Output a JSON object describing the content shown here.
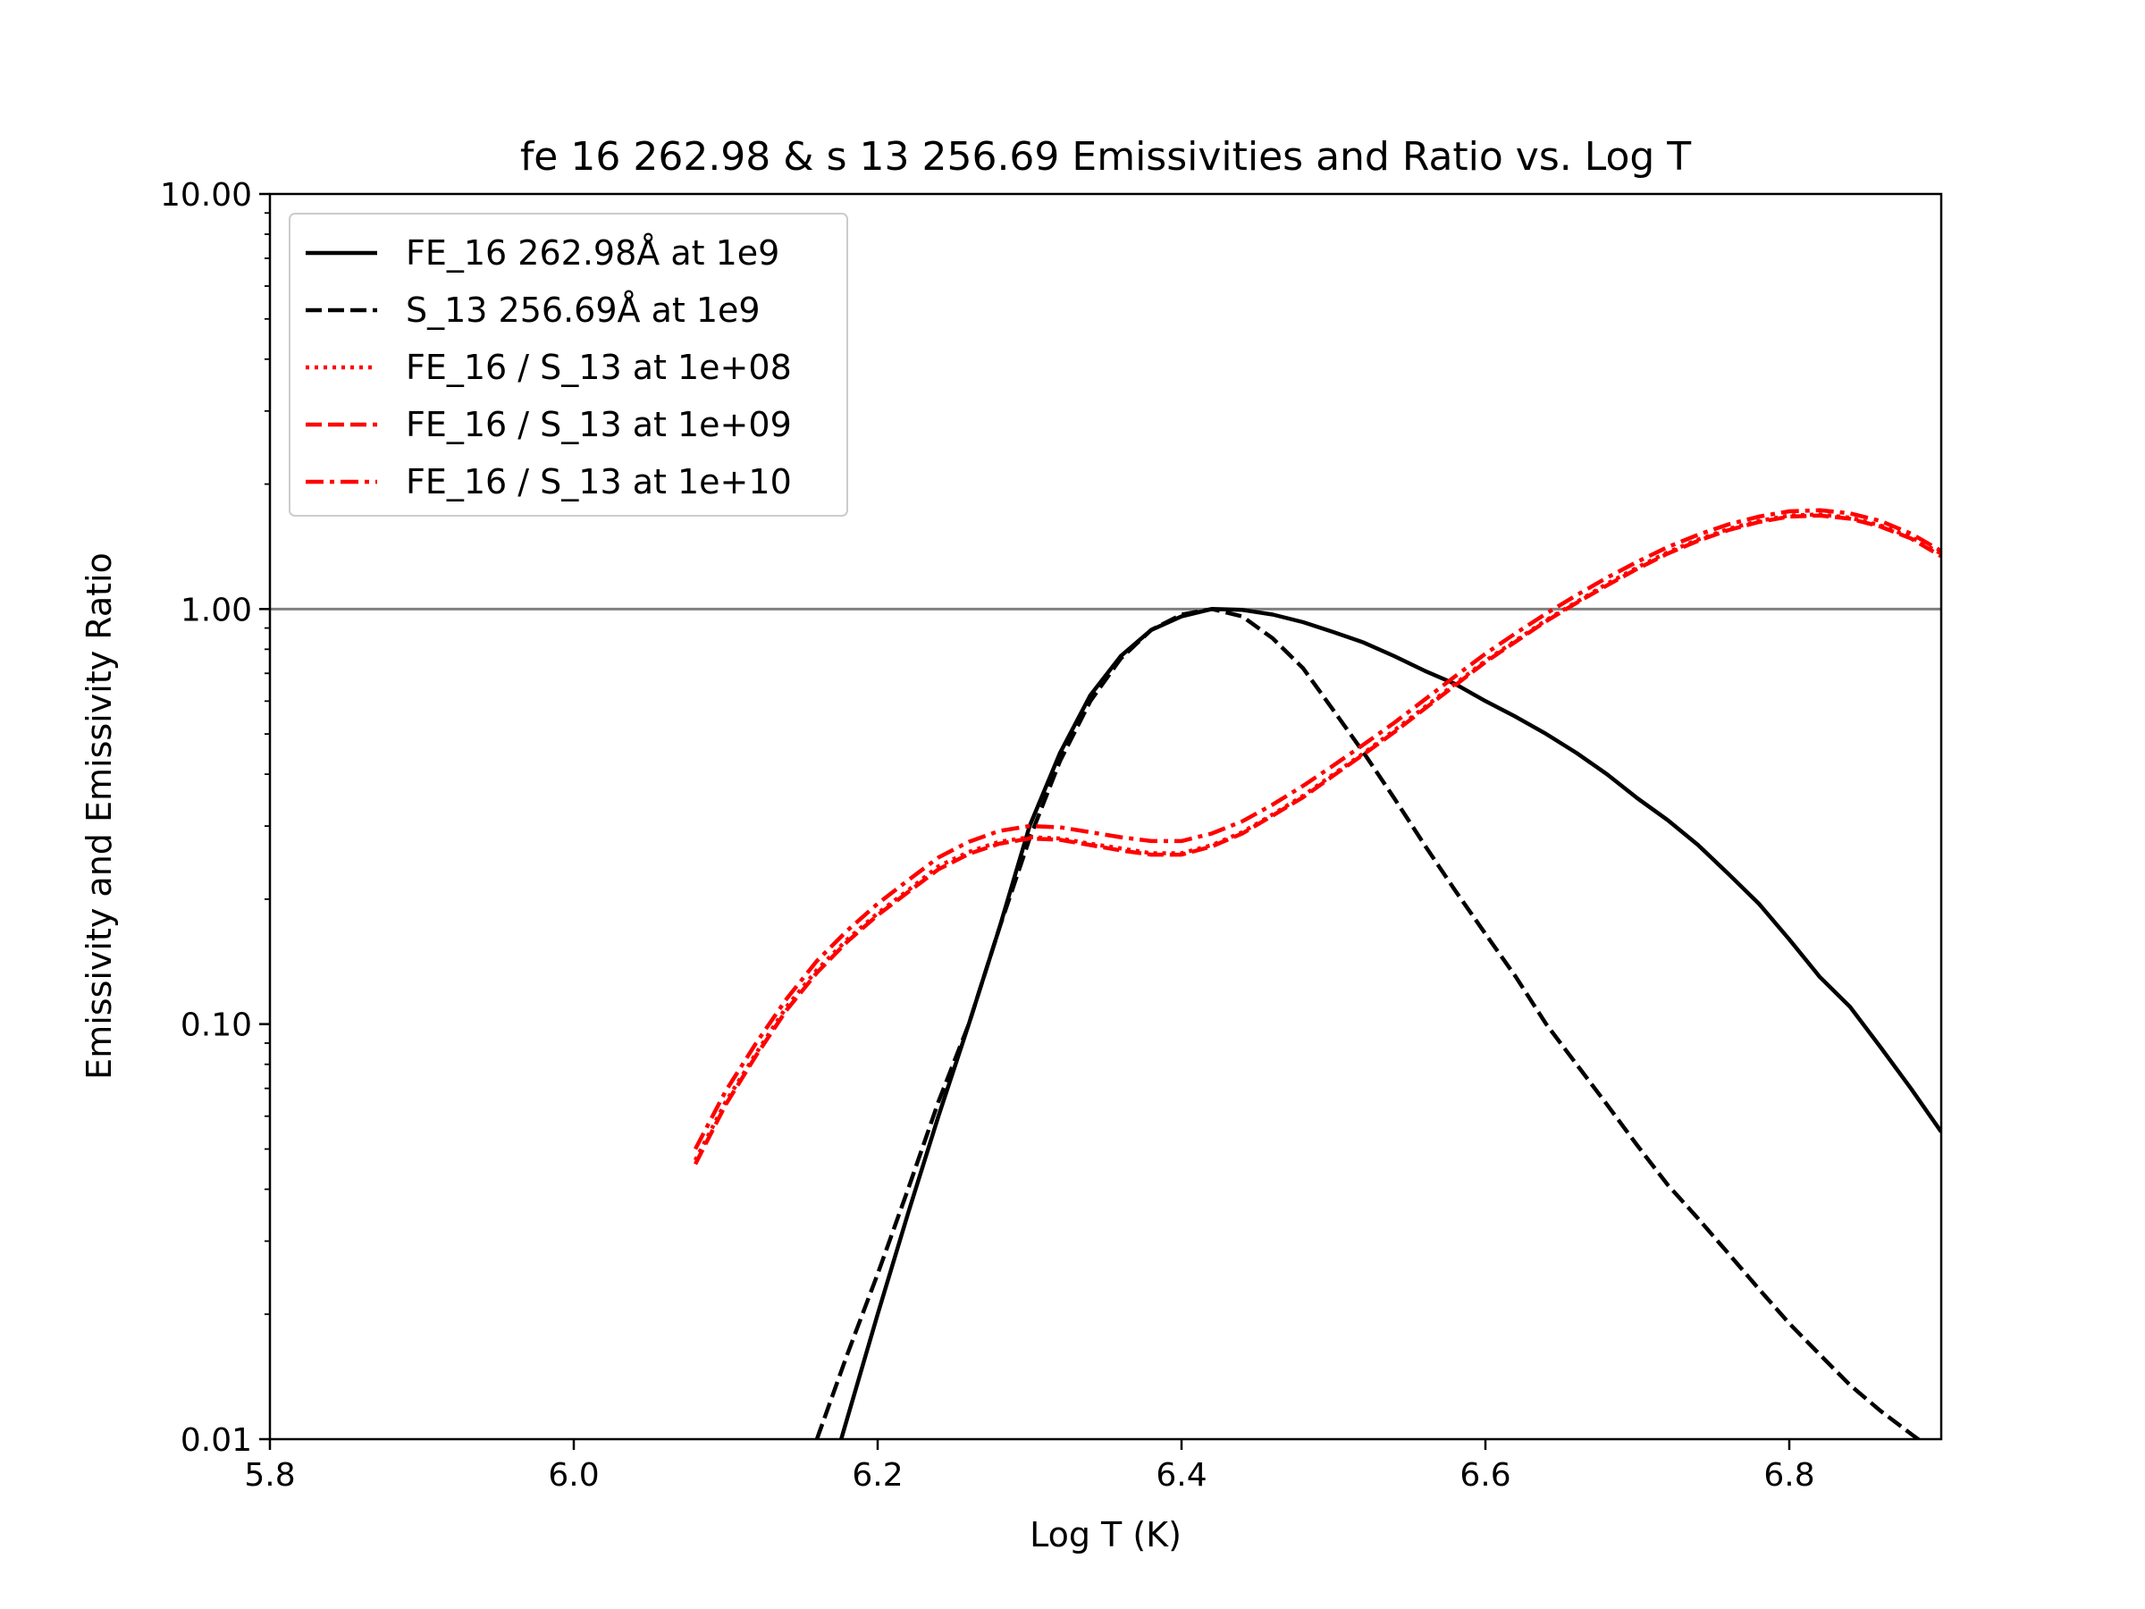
{
  "chart_data": {
    "type": "line",
    "title": "fe 16 262.98 & s 13 256.69 Emissivities and Ratio vs. Log T",
    "xlabel": "Log T (K)",
    "ylabel": "Emissivity and Emissivity Ratio",
    "xlim": [
      5.8,
      6.9
    ],
    "ylim": [
      0.01,
      10
    ],
    "yscale": "log",
    "grid": false,
    "legend_position": "upper-left",
    "xticks": [
      5.8,
      6.0,
      6.2,
      6.4,
      6.6,
      6.8
    ],
    "xtick_labels": [
      "5.8",
      "6.0",
      "6.2",
      "6.4",
      "6.6",
      "6.8"
    ],
    "yticks": [
      0.01,
      0.1,
      1,
      10
    ],
    "ytick_labels": [
      "0.01",
      "0.10",
      "1.00",
      "10.00"
    ],
    "reference_line": {
      "y": 1.0,
      "color": "#808080"
    },
    "series": [
      {
        "name": "FE_16 262.98Å at 1e9",
        "color": "#000000",
        "style": "solid",
        "x": [
          6.176,
          6.2,
          6.22,
          6.24,
          6.26,
          6.28,
          6.3,
          6.32,
          6.34,
          6.36,
          6.38,
          6.4,
          6.42,
          6.44,
          6.46,
          6.48,
          6.5,
          6.52,
          6.54,
          6.56,
          6.58,
          6.6,
          6.62,
          6.64,
          6.66,
          6.68,
          6.7,
          6.72,
          6.74,
          6.76,
          6.78,
          6.8,
          6.82,
          6.84,
          6.86,
          6.88,
          6.9
        ],
        "y": [
          0.01,
          0.02,
          0.035,
          0.06,
          0.1,
          0.17,
          0.3,
          0.45,
          0.62,
          0.77,
          0.89,
          0.96,
          1.0,
          0.995,
          0.97,
          0.93,
          0.88,
          0.83,
          0.77,
          0.71,
          0.66,
          0.6,
          0.55,
          0.5,
          0.45,
          0.4,
          0.35,
          0.31,
          0.27,
          0.23,
          0.195,
          0.16,
          0.13,
          0.11,
          0.088,
          0.07,
          0.055
        ]
      },
      {
        "name": "S_13 256.69Å at 1e9",
        "color": "#000000",
        "style": "dashed",
        "x": [
          6.16,
          6.18,
          6.2,
          6.22,
          6.24,
          6.26,
          6.28,
          6.3,
          6.32,
          6.34,
          6.36,
          6.38,
          6.4,
          6.42,
          6.44,
          6.46,
          6.48,
          6.5,
          6.52,
          6.54,
          6.56,
          6.58,
          6.6,
          6.62,
          6.64,
          6.66,
          6.68,
          6.7,
          6.72,
          6.74,
          6.76,
          6.78,
          6.8,
          6.82,
          6.84,
          6.86,
          6.88,
          6.9
        ],
        "y": [
          0.01,
          0.016,
          0.025,
          0.04,
          0.065,
          0.1,
          0.17,
          0.28,
          0.43,
          0.6,
          0.76,
          0.89,
          0.97,
          1.0,
          0.96,
          0.85,
          0.72,
          0.57,
          0.45,
          0.35,
          0.27,
          0.21,
          0.165,
          0.13,
          0.1,
          0.08,
          0.064,
          0.051,
          0.041,
          0.034,
          0.028,
          0.023,
          0.019,
          0.016,
          0.0135,
          0.0117,
          0.0103,
          0.0091
        ]
      },
      {
        "name": "FE_16 / S_13 at 1e+08",
        "color": "#ff0000",
        "style": "dotted",
        "x": [
          6.08,
          6.1,
          6.12,
          6.14,
          6.16,
          6.18,
          6.2,
          6.22,
          6.24,
          6.26,
          6.28,
          6.3,
          6.32,
          6.34,
          6.36,
          6.38,
          6.4,
          6.42,
          6.44,
          6.46,
          6.48,
          6.5,
          6.52,
          6.54,
          6.56,
          6.58,
          6.6,
          6.62,
          6.64,
          6.66,
          6.68,
          6.7,
          6.72,
          6.74,
          6.76,
          6.78,
          6.8,
          6.82,
          6.84,
          6.86,
          6.88,
          6.9
        ],
        "y": [
          0.047,
          0.065,
          0.085,
          0.11,
          0.135,
          0.16,
          0.185,
          0.21,
          0.24,
          0.26,
          0.275,
          0.282,
          0.28,
          0.272,
          0.265,
          0.258,
          0.258,
          0.27,
          0.29,
          0.32,
          0.355,
          0.4,
          0.45,
          0.51,
          0.58,
          0.66,
          0.75,
          0.84,
          0.94,
          1.04,
          1.15,
          1.26,
          1.37,
          1.47,
          1.56,
          1.63,
          1.68,
          1.69,
          1.66,
          1.59,
          1.49,
          1.36
        ]
      },
      {
        "name": "FE_16 / S_13 at 1e+09",
        "color": "#ff0000",
        "style": "dashed",
        "x": [
          6.08,
          6.1,
          6.12,
          6.14,
          6.16,
          6.18,
          6.2,
          6.22,
          6.24,
          6.26,
          6.28,
          6.3,
          6.32,
          6.34,
          6.36,
          6.38,
          6.4,
          6.42,
          6.44,
          6.46,
          6.48,
          6.5,
          6.52,
          6.54,
          6.56,
          6.58,
          6.6,
          6.62,
          6.64,
          6.66,
          6.68,
          6.7,
          6.72,
          6.74,
          6.76,
          6.78,
          6.8,
          6.82,
          6.84,
          6.86,
          6.88,
          6.9
        ],
        "y": [
          0.046,
          0.064,
          0.084,
          0.108,
          0.133,
          0.158,
          0.183,
          0.208,
          0.236,
          0.257,
          0.272,
          0.28,
          0.278,
          0.27,
          0.262,
          0.256,
          0.256,
          0.268,
          0.288,
          0.318,
          0.352,
          0.397,
          0.447,
          0.505,
          0.575,
          0.655,
          0.745,
          0.835,
          0.935,
          1.035,
          1.14,
          1.25,
          1.36,
          1.46,
          1.55,
          1.62,
          1.67,
          1.68,
          1.65,
          1.58,
          1.48,
          1.34
        ]
      },
      {
        "name": "FE_16 / S_13 at 1e+10",
        "color": "#ff0000",
        "style": "dashdot",
        "x": [
          6.08,
          6.1,
          6.12,
          6.14,
          6.16,
          6.18,
          6.2,
          6.22,
          6.24,
          6.26,
          6.28,
          6.3,
          6.32,
          6.34,
          6.36,
          6.38,
          6.4,
          6.42,
          6.44,
          6.46,
          6.48,
          6.5,
          6.52,
          6.54,
          6.56,
          6.58,
          6.6,
          6.62,
          6.64,
          6.66,
          6.68,
          6.7,
          6.72,
          6.74,
          6.76,
          6.78,
          6.8,
          6.82,
          6.84,
          6.86,
          6.88,
          6.9
        ],
        "y": [
          0.05,
          0.069,
          0.09,
          0.115,
          0.142,
          0.168,
          0.195,
          0.222,
          0.252,
          0.275,
          0.292,
          0.3,
          0.298,
          0.29,
          0.282,
          0.276,
          0.276,
          0.288,
          0.308,
          0.338,
          0.375,
          0.42,
          0.472,
          0.532,
          0.605,
          0.688,
          0.78,
          0.875,
          0.975,
          1.08,
          1.19,
          1.3,
          1.41,
          1.51,
          1.6,
          1.67,
          1.72,
          1.73,
          1.7,
          1.63,
          1.52,
          1.38
        ]
      }
    ]
  }
}
